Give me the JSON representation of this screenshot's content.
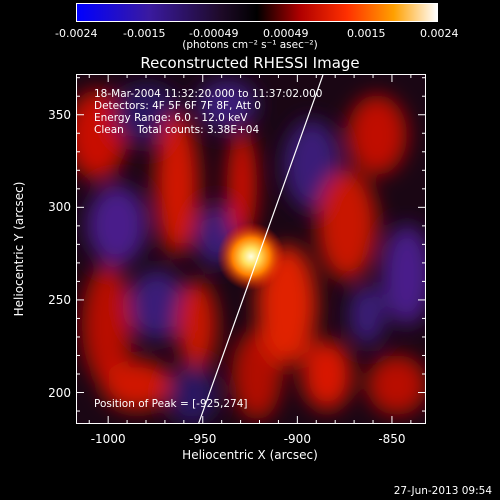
{
  "colorbar": {
    "ticks": [
      "-0.0024",
      "-0.0015",
      "-0.00049",
      "0.00049",
      "0.0015",
      "0.0024"
    ],
    "units": "(photons cm⁻² s⁻¹ asec⁻²)"
  },
  "chart_data": {
    "type": "heatmap",
    "title": "Reconstructed RHESSI Image",
    "xlabel": "Heliocentric X (arcsec)",
    "ylabel": "Heliocentric Y (arcsec)",
    "xlim": [
      -1017,
      -832
    ],
    "ylim": [
      183,
      372
    ],
    "x_ticks": [
      "-1000",
      "-950",
      "-900",
      "-850"
    ],
    "y_ticks": [
      "200",
      "250",
      "300",
      "350"
    ],
    "x_tick_values": [
      -1000,
      -950,
      -900,
      -850
    ],
    "y_tick_values": [
      200,
      250,
      300,
      350
    ],
    "color_range": [
      -0.0024,
      0.0024
    ],
    "peak": {
      "x": -925,
      "y": 274
    },
    "limb_line": [
      [
        -953,
        183
      ],
      [
        -887,
        372
      ]
    ],
    "annotations": {
      "time": "18-Mar-2004 11:32:20.000 to 11:37:02.000",
      "detectors": "Detectors: 4F 5F 6F 7F 8F, Att 0",
      "energy": "Energy Range: 6.0 - 12.0 keV",
      "clean": "Clean    Total counts: 3.38E+04",
      "peak_text": "Position of Peak = [-925,274]"
    }
  },
  "footer": {
    "timestamp": "27-Jun-2013 09:54"
  },
  "colors": {
    "background": "#000000",
    "axes": "#ffffff"
  }
}
